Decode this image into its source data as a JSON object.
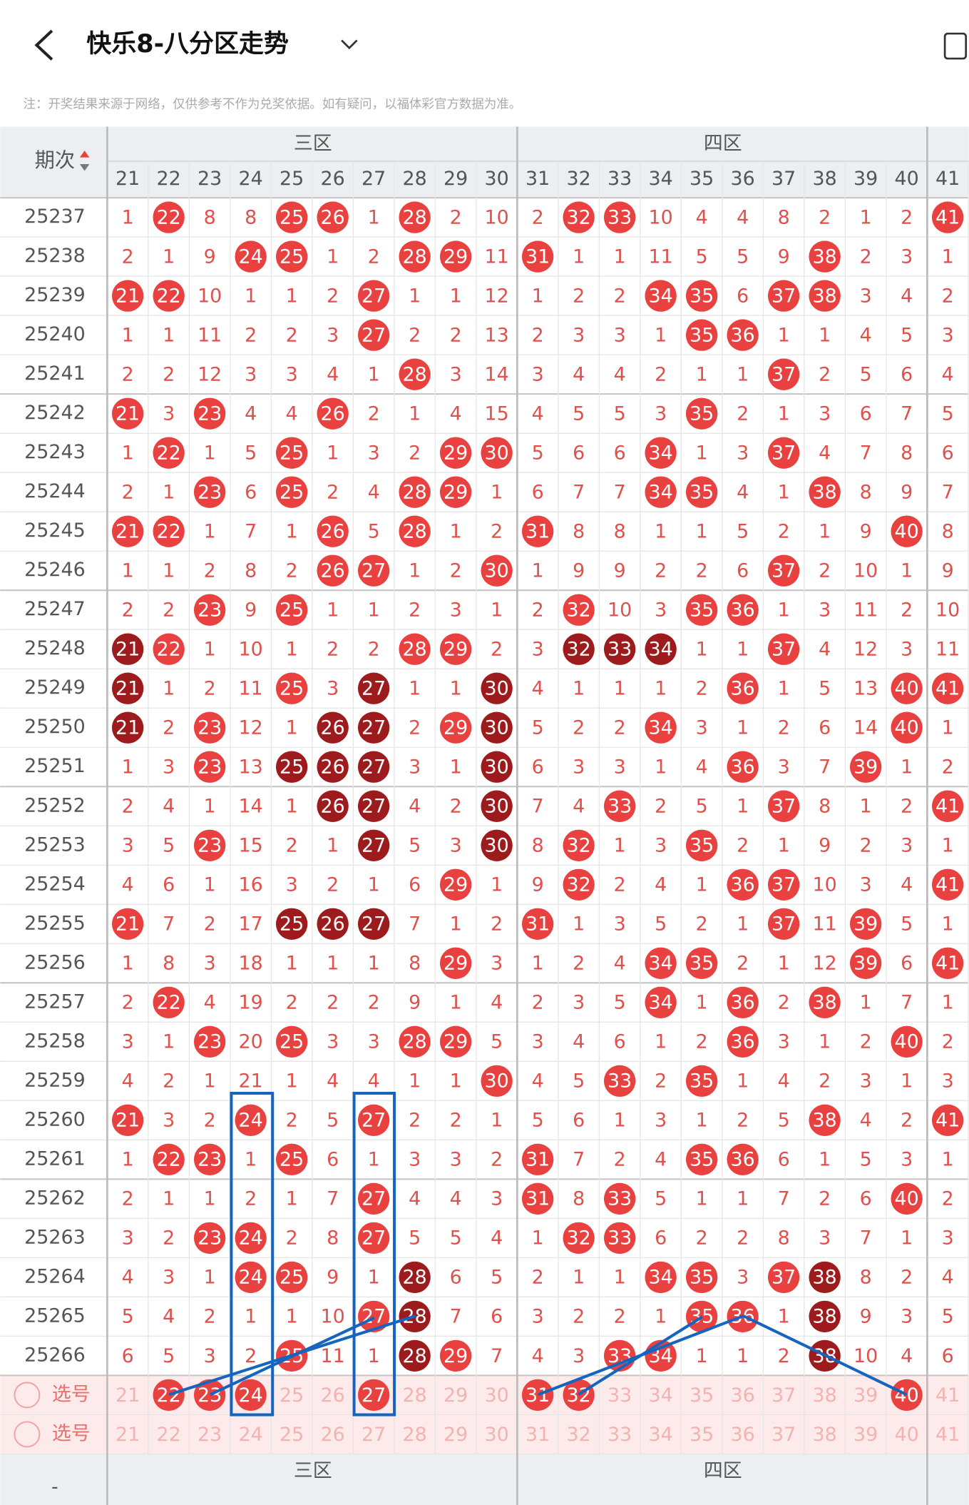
{
  "header": {
    "title": "快乐8-八分区走势",
    "note": "注：开奖结果来源于网络，仅供参考不作为兑奖依据。如有疑问，以福体彩官方数据为准。"
  },
  "table": {
    "period_label": "期次",
    "zones": [
      "三区",
      "四区"
    ],
    "columns": [
      21,
      22,
      23,
      24,
      25,
      26,
      27,
      28,
      29,
      30,
      31,
      32,
      33,
      34,
      35,
      36,
      37,
      38,
      39,
      40,
      41
    ],
    "rows": [
      {
        "period": "25237",
        "cells": [
          1,
          22,
          8,
          8,
          25,
          26,
          1,
          28,
          2,
          10,
          2,
          32,
          33,
          10,
          4,
          4,
          8,
          2,
          1,
          2,
          41
        ]
      },
      {
        "period": "25238",
        "cells": [
          2,
          1,
          9,
          24,
          25,
          1,
          2,
          28,
          29,
          11,
          31,
          1,
          1,
          11,
          5,
          5,
          9,
          38,
          2,
          3,
          1
        ]
      },
      {
        "period": "25239",
        "cells": [
          21,
          22,
          10,
          1,
          1,
          2,
          27,
          1,
          1,
          12,
          1,
          2,
          2,
          34,
          35,
          6,
          37,
          38,
          3,
          4,
          2
        ]
      },
      {
        "period": "25240",
        "cells": [
          1,
          1,
          11,
          2,
          2,
          3,
          27,
          2,
          2,
          13,
          2,
          3,
          3,
          1,
          35,
          36,
          1,
          1,
          4,
          5,
          3
        ]
      },
      {
        "period": "25241",
        "cells": [
          2,
          2,
          12,
          3,
          3,
          4,
          1,
          28,
          3,
          14,
          3,
          4,
          4,
          2,
          1,
          1,
          37,
          2,
          5,
          6,
          4
        ]
      },
      {
        "period": "25242",
        "cells": [
          21,
          3,
          23,
          4,
          4,
          26,
          2,
          1,
          4,
          15,
          4,
          5,
          5,
          3,
          35,
          2,
          1,
          3,
          6,
          7,
          5
        ]
      },
      {
        "period": "25243",
        "cells": [
          1,
          22,
          1,
          5,
          25,
          1,
          3,
          2,
          29,
          30,
          5,
          6,
          6,
          34,
          1,
          3,
          37,
          4,
          7,
          8,
          6
        ]
      },
      {
        "period": "25244",
        "cells": [
          2,
          1,
          23,
          6,
          25,
          2,
          4,
          28,
          29,
          1,
          6,
          7,
          7,
          34,
          35,
          4,
          1,
          38,
          8,
          9,
          7
        ]
      },
      {
        "period": "25245",
        "cells": [
          21,
          22,
          1,
          7,
          1,
          26,
          5,
          28,
          1,
          2,
          31,
          8,
          8,
          1,
          1,
          5,
          2,
          1,
          9,
          40,
          8
        ]
      },
      {
        "period": "25246",
        "cells": [
          1,
          1,
          2,
          8,
          2,
          26,
          27,
          1,
          2,
          30,
          1,
          9,
          9,
          2,
          2,
          6,
          37,
          2,
          10,
          1,
          9
        ]
      },
      {
        "period": "25247",
        "cells": [
          2,
          2,
          23,
          9,
          25,
          1,
          1,
          2,
          3,
          1,
          2,
          32,
          10,
          3,
          35,
          36,
          1,
          3,
          11,
          2,
          10
        ]
      },
      {
        "period": "25248",
        "cells": [
          21,
          22,
          1,
          10,
          1,
          2,
          2,
          28,
          29,
          2,
          3,
          32,
          33,
          34,
          1,
          1,
          37,
          4,
          12,
          3,
          11
        ]
      },
      {
        "period": "25249",
        "cells": [
          21,
          1,
          2,
          11,
          25,
          3,
          27,
          1,
          1,
          30,
          4,
          1,
          1,
          1,
          2,
          36,
          1,
          5,
          13,
          40,
          41
        ]
      },
      {
        "period": "25250",
        "cells": [
          21,
          2,
          23,
          12,
          1,
          26,
          27,
          2,
          29,
          30,
          5,
          2,
          2,
          34,
          3,
          1,
          2,
          6,
          14,
          40,
          1
        ]
      },
      {
        "period": "25251",
        "cells": [
          1,
          3,
          23,
          13,
          25,
          26,
          27,
          3,
          1,
          30,
          6,
          3,
          3,
          1,
          4,
          36,
          3,
          7,
          39,
          1,
          2
        ]
      },
      {
        "period": "25252",
        "cells": [
          2,
          4,
          1,
          14,
          1,
          26,
          27,
          4,
          2,
          30,
          7,
          4,
          33,
          2,
          5,
          1,
          37,
          8,
          1,
          2,
          41
        ]
      },
      {
        "period": "25253",
        "cells": [
          3,
          5,
          23,
          15,
          2,
          1,
          27,
          5,
          3,
          30,
          8,
          32,
          1,
          3,
          35,
          2,
          1,
          9,
          2,
          3,
          1
        ]
      },
      {
        "period": "25254",
        "cells": [
          4,
          6,
          1,
          16,
          3,
          2,
          1,
          6,
          29,
          1,
          9,
          32,
          2,
          4,
          1,
          36,
          37,
          10,
          3,
          4,
          41
        ]
      },
      {
        "period": "25255",
        "cells": [
          21,
          7,
          2,
          17,
          25,
          26,
          27,
          7,
          1,
          2,
          31,
          1,
          3,
          5,
          2,
          1,
          37,
          11,
          39,
          5,
          1
        ]
      },
      {
        "period": "25256",
        "cells": [
          1,
          8,
          3,
          18,
          1,
          1,
          1,
          8,
          29,
          3,
          1,
          2,
          4,
          34,
          35,
          2,
          1,
          12,
          39,
          6,
          41
        ]
      },
      {
        "period": "25257",
        "cells": [
          2,
          22,
          4,
          19,
          2,
          2,
          2,
          9,
          1,
          4,
          2,
          3,
          5,
          34,
          1,
          36,
          2,
          38,
          1,
          7,
          1
        ]
      },
      {
        "period": "25258",
        "cells": [
          3,
          1,
          23,
          20,
          25,
          3,
          3,
          28,
          29,
          5,
          3,
          4,
          6,
          1,
          2,
          36,
          3,
          1,
          2,
          40,
          2
        ]
      },
      {
        "period": "25259",
        "cells": [
          4,
          2,
          1,
          21,
          1,
          4,
          4,
          1,
          1,
          30,
          4,
          5,
          33,
          2,
          35,
          1,
          4,
          2,
          3,
          1,
          3
        ]
      },
      {
        "period": "25260",
        "cells": [
          21,
          3,
          2,
          24,
          2,
          5,
          27,
          2,
          2,
          1,
          5,
          6,
          1,
          3,
          1,
          2,
          5,
          38,
          4,
          2,
          41
        ]
      },
      {
        "period": "25261",
        "cells": [
          1,
          22,
          23,
          1,
          25,
          6,
          1,
          3,
          3,
          2,
          31,
          7,
          2,
          4,
          35,
          36,
          6,
          1,
          5,
          3,
          1
        ]
      },
      {
        "period": "25262",
        "cells": [
          2,
          1,
          1,
          2,
          1,
          7,
          27,
          4,
          4,
          3,
          31,
          8,
          33,
          5,
          1,
          1,
          7,
          2,
          6,
          40,
          2
        ]
      },
      {
        "period": "25263",
        "cells": [
          3,
          2,
          23,
          24,
          2,
          8,
          27,
          5,
          5,
          4,
          1,
          32,
          33,
          6,
          2,
          2,
          8,
          3,
          7,
          1,
          3
        ]
      },
      {
        "period": "25264",
        "cells": [
          4,
          3,
          1,
          24,
          25,
          9,
          1,
          28,
          6,
          5,
          2,
          1,
          1,
          34,
          35,
          3,
          37,
          38,
          8,
          2,
          4
        ]
      },
      {
        "period": "25265",
        "cells": [
          5,
          4,
          2,
          1,
          1,
          10,
          27,
          28,
          7,
          6,
          3,
          2,
          2,
          1,
          35,
          36,
          1,
          38,
          9,
          3,
          5
        ]
      },
      {
        "period": "25266",
        "cells": [
          6,
          5,
          3,
          2,
          25,
          11,
          1,
          28,
          29,
          7,
          4,
          3,
          33,
          34,
          1,
          1,
          2,
          38,
          10,
          4,
          6
        ]
      }
    ],
    "select_rows": [
      {
        "label": "选号",
        "selected": [
          22,
          23,
          24,
          27,
          31,
          32,
          40
        ]
      },
      {
        "label": "选号",
        "selected": []
      }
    ]
  },
  "footer": {
    "left": "-",
    "zones": [
      "三区",
      "四区"
    ]
  }
}
